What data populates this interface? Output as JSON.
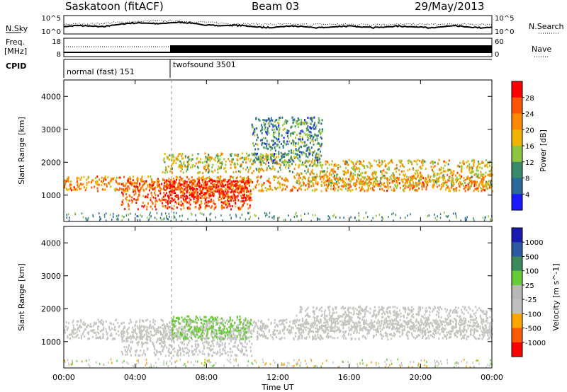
{
  "header": {
    "station": "Saskatoon (fitACF)",
    "beam": "Beam 03",
    "date": "29/May/2013"
  },
  "noise_panel": {
    "left_label": "N.Sky",
    "left_ticks": [
      "10^5",
      "10^0"
    ],
    "right_label": "N.Search",
    "right_ticks": [
      "10^5",
      "10^0"
    ]
  },
  "freq_panel": {
    "left_label_1": "Freq.",
    "left_label_2": "[MHz]",
    "left_ticks": [
      "18",
      "8"
    ],
    "right_label": "Nave",
    "right_ticks": [
      "60",
      "0"
    ]
  },
  "cpid": {
    "label": "CPID",
    "mode_1": "normal (fast) 151",
    "mode_2": "twofsound 3501"
  },
  "x_axis": {
    "label": "Time UT",
    "ticks": [
      "00:00",
      "04:00",
      "08:00",
      "12:00",
      "16:00",
      "20:00",
      "00:00"
    ]
  },
  "colors": {
    "power": [
      "#1a1aff",
      "#2a6a9a",
      "#3a8a6a",
      "#8cc63f",
      "#f0b400",
      "#ff8a00",
      "#ff5500",
      "#ff0000"
    ],
    "velocity": [
      "#ff0000",
      "#ff5a00",
      "#ffa500",
      "#c0c0c0",
      "#b8b8b8",
      "#66cc33",
      "#3a8a5a",
      "#2a5aa0",
      "#1a1ab0"
    ]
  },
  "chart_data": [
    {
      "type": "heatmap",
      "title": "",
      "xlabel": "Time UT",
      "ylabel": "Slant Range [km]",
      "xlim": [
        0,
        24
      ],
      "ylim": [
        200,
        4500
      ],
      "yticks": [
        "1000",
        "2000",
        "3000",
        "4000"
      ],
      "colorbar": {
        "label": "Power [dB]",
        "ticks": [
          "4",
          "8",
          "12",
          "16",
          "20",
          "24",
          "28"
        ],
        "range": [
          0,
          32
        ]
      },
      "scatter_bands": [
        {
          "t0": 0.0,
          "t1": 24.0,
          "r0": 1150,
          "r1": 1600,
          "level": 22
        },
        {
          "t0": 3.2,
          "t1": 10.5,
          "r0": 600,
          "r1": 1500,
          "level": 26
        },
        {
          "t0": 5.5,
          "t1": 10.5,
          "r0": 800,
          "r1": 1500,
          "level": 29
        },
        {
          "t0": 5.5,
          "t1": 13.0,
          "r0": 1700,
          "r1": 2300,
          "level": 16
        },
        {
          "t0": 13.0,
          "t1": 24.0,
          "r0": 1300,
          "r1": 2100,
          "level": 18
        },
        {
          "t0": 10.5,
          "t1": 14.5,
          "r0": 2000,
          "r1": 3400,
          "level": 10
        }
      ]
    },
    {
      "type": "heatmap",
      "title": "",
      "xlabel": "Time UT",
      "ylabel": "Slant Range [km]",
      "xlim": [
        0,
        24
      ],
      "ylim": [
        200,
        4500
      ],
      "yticks": [
        "1000",
        "2000",
        "3000",
        "4000"
      ],
      "colorbar": {
        "label": "Velocity [m s^-1]",
        "ticks": [
          "1000",
          "500",
          "100",
          "25",
          "-25",
          "-100",
          "-500",
          "-1000"
        ],
        "range": [
          -1000,
          1000
        ]
      },
      "scatter_bands": [
        {
          "t0": 0.0,
          "t1": 24.0,
          "r0": 1100,
          "r1": 1700,
          "level": 0
        },
        {
          "t0": 3.2,
          "t1": 10.5,
          "r0": 600,
          "r1": 1500,
          "level": 0
        },
        {
          "t0": 6.0,
          "t1": 10.5,
          "r0": 1100,
          "r1": 1800,
          "level": 100
        },
        {
          "t0": 13.0,
          "t1": 24.0,
          "r0": 1300,
          "r1": 2100,
          "level": 0
        }
      ]
    }
  ]
}
